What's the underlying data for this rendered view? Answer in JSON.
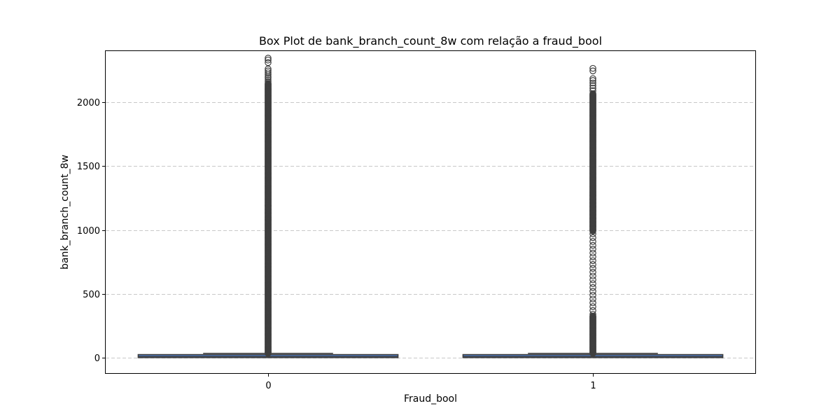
{
  "chart_data": {
    "type": "box",
    "title": "Box Plot de bank_branch_count_8w com relação a fraud_bool",
    "xlabel": "Fraud_bool",
    "ylabel": "bank_branch_count_8w",
    "categories": [
      "0",
      "1"
    ],
    "ylim": [
      -120,
      2400
    ],
    "yticks": [
      0,
      500,
      1000,
      1500,
      2000
    ],
    "grid": "y",
    "box_color": "#4c72b0",
    "line_color": "#3f3f3f",
    "boxes": [
      {
        "category": "0",
        "min": 0,
        "q1": 1,
        "median": 9,
        "q3": 25,
        "whisker_high": 35,
        "outlier_range": [
          35,
          2150
        ],
        "outlier_sparse": [
          1080,
          1100,
          1130,
          1160,
          1190,
          2160,
          2175,
          2190,
          2200,
          2215,
          2230,
          2245,
          2260,
          2310,
          2330,
          2345
        ]
      },
      {
        "category": "1",
        "min": 0,
        "q1": 1,
        "median": 9,
        "q3": 25,
        "whisker_high": 35,
        "outlier_range": [
          35,
          2070
        ],
        "outlier_gap": [
          330,
          990
        ],
        "outlier_sparse": [
          340,
          370,
          400,
          430,
          460,
          490,
          520,
          550,
          580,
          610,
          640,
          670,
          700,
          730,
          760,
          790,
          820,
          850,
          880,
          910,
          940,
          970,
          1000,
          1030,
          1060,
          1090,
          1120,
          1150,
          1180,
          1210,
          1240,
          1270,
          2090,
          2110,
          2130,
          2150,
          2170,
          2185,
          2245,
          2265
        ]
      }
    ]
  }
}
